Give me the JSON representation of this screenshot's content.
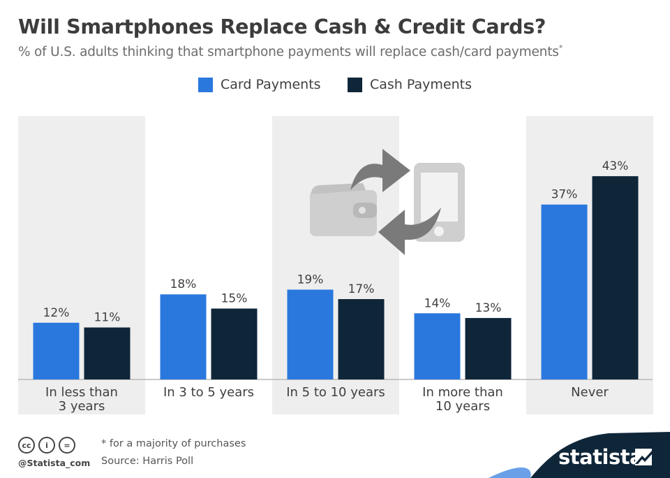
{
  "header": {
    "title": "Will Smartphones Replace Cash & Credit Cards?",
    "subtitle": "% of U.S. adults thinking that smartphone payments will replace cash/card payments",
    "subtitle_marker": "*"
  },
  "colors": {
    "card": "#2a78de",
    "cash": "#0f2639",
    "band": "#eeeeee",
    "icon": "#cfcfcf",
    "arrow": "#7a7a7a",
    "brand": "#0f2639"
  },
  "decoration_icons": [
    "wallet-icon",
    "smartphone-icon",
    "exchange-arrow-icon"
  ],
  "chart_data": {
    "type": "bar",
    "categories": [
      [
        "In less than",
        "3 years"
      ],
      [
        "In 3 to 5 years"
      ],
      [
        "In 5 to 10 years"
      ],
      [
        "In more than",
        "10 years"
      ],
      [
        "Never"
      ]
    ],
    "series": [
      {
        "name": "Card Payments",
        "values": [
          12,
          18,
          19,
          14,
          37
        ]
      },
      {
        "name": "Cash Payments",
        "values": [
          11,
          15,
          17,
          13,
          43
        ]
      }
    ],
    "value_suffix": "%",
    "ylim": [
      0,
      48
    ],
    "title": "Will Smartphones Replace Cash & Credit Cards?",
    "xlabel": "",
    "ylabel": "",
    "legend": "top-center",
    "grid": false,
    "data_labels": true
  },
  "footer": {
    "note": "* for a majority of purchases",
    "source": "Source: Harris Poll",
    "handle": "@Statista_com",
    "license_icons": [
      "cc-icon",
      "by-icon",
      "nd-icon"
    ],
    "license_glyphs": [
      "cc",
      "i",
      "="
    ],
    "brand": "statista"
  }
}
